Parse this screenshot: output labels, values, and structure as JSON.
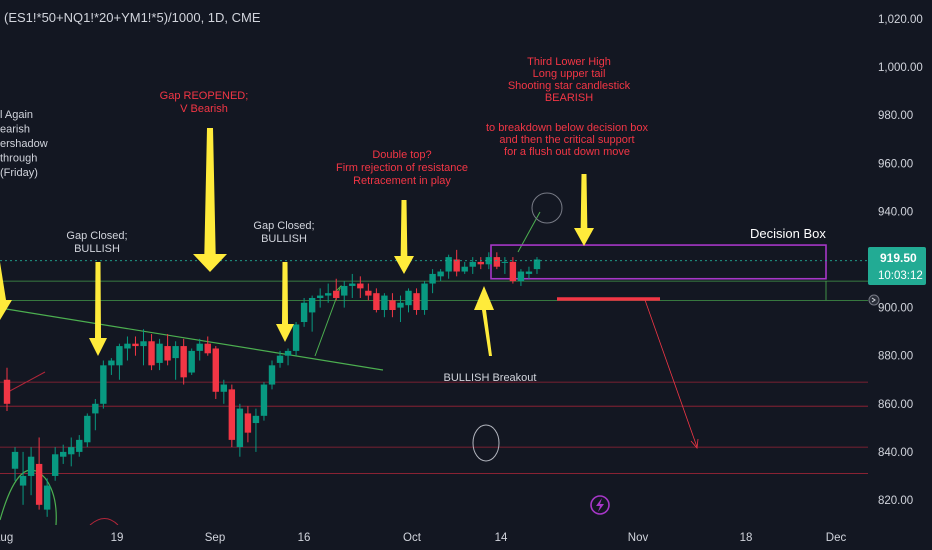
{
  "header": {
    "symbol_title": "(ES1!*50+NQ1!*20+YM1!*5)/1000, 1D, CME"
  },
  "chart_data": {
    "type": "candlestick",
    "title": "(ES1!*50+NQ1!*20+YM1!*5)/1000, 1D, CME",
    "ylim": [
      813,
      1024
    ],
    "y_ticks": [
      1020,
      1000,
      980,
      960,
      940,
      920,
      900,
      880,
      860,
      840,
      820
    ],
    "y_tick_labels": [
      "1,020.00",
      "1,000.00",
      "980.00",
      "960.00",
      "940.00",
      "920.00",
      "900.00",
      "880.00",
      "860.00",
      "840.00",
      "820.00"
    ],
    "x_tick_labels": [
      "Aug",
      "19",
      "Sep",
      "16",
      "Oct",
      "14",
      "Nov",
      "18",
      "Dec"
    ],
    "grid": false,
    "up_color": "#089981",
    "down_color": "#f23645",
    "last_price": {
      "value": "919.50",
      "countdown": "10:03:12",
      "color": "#22ab94"
    },
    "candles": [
      {
        "o": 870,
        "h": 875,
        "l": 857,
        "c": 860
      },
      {
        "o": 833,
        "h": 842,
        "l": 828,
        "c": 840
      },
      {
        "o": 826,
        "h": 840,
        "l": 818,
        "c": 830
      },
      {
        "o": 830,
        "h": 842,
        "l": 822,
        "c": 838
      },
      {
        "o": 835,
        "h": 846,
        "l": 816,
        "c": 818
      },
      {
        "o": 816,
        "h": 829,
        "l": 813,
        "c": 826
      },
      {
        "o": 830,
        "h": 842,
        "l": 828,
        "c": 839
      },
      {
        "o": 838,
        "h": 843,
        "l": 835,
        "c": 840
      },
      {
        "o": 839,
        "h": 846,
        "l": 834,
        "c": 842
      },
      {
        "o": 840,
        "h": 847,
        "l": 838,
        "c": 845
      },
      {
        "o": 844,
        "h": 856,
        "l": 842,
        "c": 855
      },
      {
        "o": 856,
        "h": 862,
        "l": 849,
        "c": 860
      },
      {
        "o": 860,
        "h": 878,
        "l": 858,
        "c": 876
      },
      {
        "o": 876,
        "h": 879,
        "l": 872,
        "c": 878
      },
      {
        "o": 876,
        "h": 885,
        "l": 870,
        "c": 884
      },
      {
        "o": 883,
        "h": 888,
        "l": 878,
        "c": 885
      },
      {
        "o": 885,
        "h": 888,
        "l": 880,
        "c": 884
      },
      {
        "o": 884,
        "h": 891,
        "l": 876,
        "c": 886
      },
      {
        "o": 886,
        "h": 889,
        "l": 874,
        "c": 876
      },
      {
        "o": 877,
        "h": 887,
        "l": 874,
        "c": 885
      },
      {
        "o": 884,
        "h": 889,
        "l": 876,
        "c": 878
      },
      {
        "o": 879,
        "h": 886,
        "l": 870,
        "c": 884
      },
      {
        "o": 884,
        "h": 887,
        "l": 868,
        "c": 871
      },
      {
        "o": 873,
        "h": 883,
        "l": 872,
        "c": 882
      },
      {
        "o": 882,
        "h": 887,
        "l": 878,
        "c": 885
      },
      {
        "o": 885,
        "h": 888,
        "l": 880,
        "c": 881
      },
      {
        "o": 883,
        "h": 884,
        "l": 862,
        "c": 865
      },
      {
        "o": 865,
        "h": 870,
        "l": 860,
        "c": 868
      },
      {
        "o": 866,
        "h": 868,
        "l": 842,
        "c": 845
      },
      {
        "o": 842,
        "h": 860,
        "l": 838,
        "c": 858
      },
      {
        "o": 856,
        "h": 859,
        "l": 844,
        "c": 848
      },
      {
        "o": 852,
        "h": 858,
        "l": 840,
        "c": 855
      },
      {
        "o": 855,
        "h": 869,
        "l": 853,
        "c": 868
      },
      {
        "o": 868,
        "h": 878,
        "l": 866,
        "c": 876
      },
      {
        "o": 877,
        "h": 882,
        "l": 875,
        "c": 880
      },
      {
        "o": 880,
        "h": 883,
        "l": 876,
        "c": 882
      },
      {
        "o": 882,
        "h": 894,
        "l": 880,
        "c": 893
      },
      {
        "o": 894,
        "h": 904,
        "l": 892,
        "c": 902
      },
      {
        "o": 898,
        "h": 905,
        "l": 890,
        "c": 904
      },
      {
        "o": 904,
        "h": 908,
        "l": 900,
        "c": 905
      },
      {
        "o": 905,
        "h": 910,
        "l": 902,
        "c": 906
      },
      {
        "o": 907,
        "h": 912,
        "l": 903,
        "c": 904
      },
      {
        "o": 905,
        "h": 911,
        "l": 900,
        "c": 909
      },
      {
        "o": 909,
        "h": 914,
        "l": 904,
        "c": 910
      },
      {
        "o": 910,
        "h": 913,
        "l": 904,
        "c": 908
      },
      {
        "o": 907,
        "h": 910,
        "l": 903,
        "c": 905
      },
      {
        "o": 906,
        "h": 908,
        "l": 898,
        "c": 899
      },
      {
        "o": 899,
        "h": 906,
        "l": 896,
        "c": 905
      },
      {
        "o": 903,
        "h": 906,
        "l": 896,
        "c": 899
      },
      {
        "o": 900,
        "h": 905,
        "l": 894,
        "c": 902
      },
      {
        "o": 901,
        "h": 908,
        "l": 898,
        "c": 907
      },
      {
        "o": 906,
        "h": 908,
        "l": 897,
        "c": 899
      },
      {
        "o": 899,
        "h": 911,
        "l": 897,
        "c": 910
      },
      {
        "o": 910,
        "h": 916,
        "l": 906,
        "c": 914
      },
      {
        "o": 913,
        "h": 916,
        "l": 911,
        "c": 915
      },
      {
        "o": 915,
        "h": 922,
        "l": 912,
        "c": 921
      },
      {
        "o": 920,
        "h": 924,
        "l": 913,
        "c": 915
      },
      {
        "o": 915,
        "h": 919,
        "l": 914,
        "c": 917
      },
      {
        "o": 917,
        "h": 921,
        "l": 914,
        "c": 919
      },
      {
        "o": 919,
        "h": 921,
        "l": 916,
        "c": 918
      },
      {
        "o": 918,
        "h": 923,
        "l": 916,
        "c": 921
      },
      {
        "o": 921,
        "h": 923,
        "l": 916,
        "c": 917
      },
      {
        "o": 919,
        "h": 921,
        "l": 914,
        "c": 919
      },
      {
        "o": 919,
        "h": 921,
        "l": 910,
        "c": 911
      },
      {
        "o": 911,
        "h": 916,
        "l": 909,
        "c": 915
      },
      {
        "o": 914,
        "h": 917,
        "l": 912,
        "c": 915
      },
      {
        "o": 916,
        "h": 921,
        "l": 914,
        "c": 920
      }
    ],
    "horizontal_levels": [
      911,
      903,
      869,
      859,
      842,
      831
    ],
    "decision_box": {
      "label": "Decision Box",
      "top": 926,
      "bottom": 912
    },
    "annotations": [
      {
        "lines": [
          "l Again",
          "earish",
          "ershadow",
          "through",
          "(Friday)"
        ],
        "color": "#d1d4dc"
      },
      {
        "lines": [
          "Gap Closed;",
          "BULLISH"
        ],
        "color": "#d1d4dc"
      },
      {
        "lines": [
          "Gap REOPENED;",
          "V Bearish"
        ],
        "color": "#f23645"
      },
      {
        "lines": [
          "Gap Closed;",
          "BULLISH"
        ],
        "color": "#d1d4dc"
      },
      {
        "lines": [
          "Double top?",
          "Firm rejection of resistance",
          "Retracement in play"
        ],
        "color": "#f23645"
      },
      {
        "lines": [
          "Third Lower High",
          "Long upper tail",
          "Shooting star candlestick",
          "BEARISH"
        ],
        "color": "#f23645"
      },
      {
        "lines": [
          "to breakdown below decision box",
          "and then the critical support",
          "for a flush out down move"
        ],
        "color": "#f23645"
      },
      {
        "lines": [
          "BULLISH Breakout"
        ],
        "color": "#d1d4dc"
      }
    ]
  }
}
